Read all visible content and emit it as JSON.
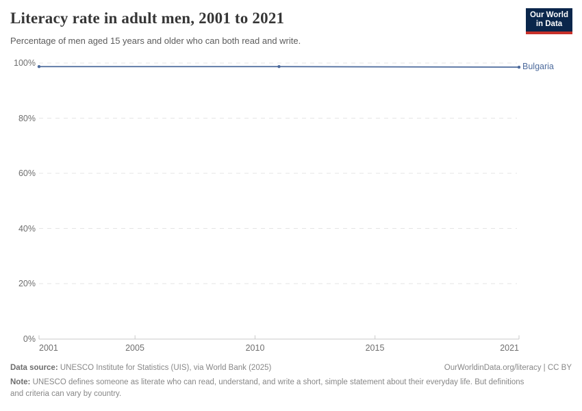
{
  "header": {
    "title": "Literacy rate in adult men, 2001 to 2021",
    "subtitle": "Percentage of men aged 15 years and older who can both read and write.",
    "logo": {
      "line1": "Our World",
      "line2": "in Data"
    }
  },
  "chart_data": {
    "type": "line",
    "title": "Literacy rate in adult men, 2001 to 2021",
    "subtitle": "Percentage of men aged 15 years and older who can both read and write.",
    "x": [
      2001,
      2011,
      2021
    ],
    "series": [
      {
        "name": "Bulgaria",
        "values": [
          98.7,
          98.7,
          98.5
        ],
        "color": "#4c6a9c"
      }
    ],
    "xlim": [
      2001,
      2021
    ],
    "ylim": [
      0,
      100
    ],
    "x_ticks": [
      "2001",
      "2005",
      "2010",
      "2015",
      "2021"
    ],
    "y_ticks": [
      "100%",
      "80%",
      "60%",
      "40%",
      "20%",
      "0%"
    ],
    "grid": "horizontal-dashed",
    "legend_position": "end-of-line-label",
    "colors": {
      "gridline": "#e4e4e4",
      "axis": "#c9c9c9",
      "tick_text": "#6e6e6e"
    }
  },
  "footer": {
    "datasource_label": "Data source:",
    "datasource_text": " UNESCO Institute for Statistics (UIS), via World Bank (2025)",
    "attribution": "OurWorldinData.org/literacy | CC BY",
    "note_label": "Note:",
    "note_text": " UNESCO defines someone as literate who can read, understand, and write a short, simple statement about their everyday life. But definitions and criteria can vary by country."
  }
}
